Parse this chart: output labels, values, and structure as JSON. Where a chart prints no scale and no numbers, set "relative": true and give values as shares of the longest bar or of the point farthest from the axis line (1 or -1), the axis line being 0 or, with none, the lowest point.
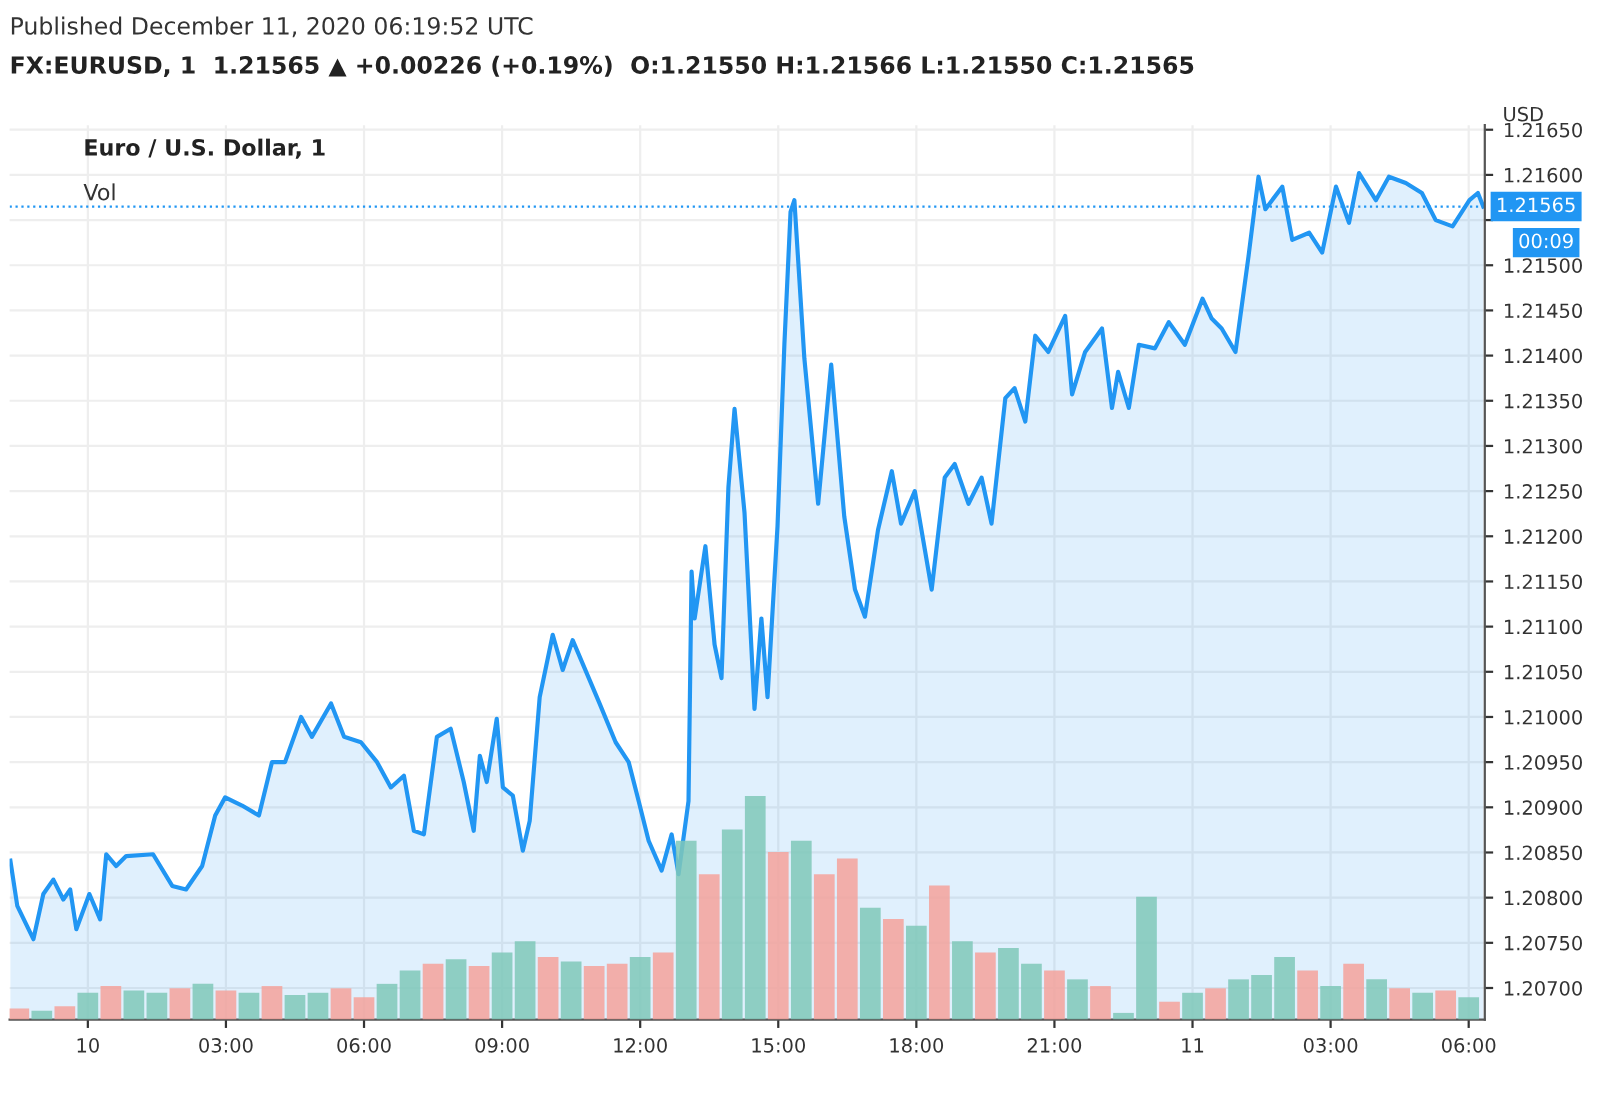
{
  "chart_data": [
    {
      "type": "area",
      "title": "FX:EURUSD, 1  1.21565 ▲ +0.00226 (+0.19%)  O:1.21550 H:1.21566 L:1.21550 C:1.21565",
      "subtitle": "Euro / U.S. Dollar, 1",
      "ylabel": "USD",
      "annotations": [
        "Published December 11, 2020 06:19:52 UTC",
        "00:09"
      ],
      "x": [
        "2020-12-09T22:19",
        "2020-12-09T22:28",
        "2020-12-09T22:49",
        "2020-12-09T23:02",
        "2020-12-09T23:15",
        "2020-12-09T23:28",
        "2020-12-09T23:37",
        "2020-12-09T23:45",
        "2020-12-10T00:02",
        "2020-12-10T00:16",
        "2020-12-10T00:24",
        "2020-12-10T00:37",
        "2020-12-10T00:50",
        "2020-12-10T01:25",
        "2020-12-10T01:50",
        "2020-12-10T02:08",
        "2020-12-10T02:29",
        "2020-12-10T02:46",
        "2020-12-10T02:59",
        "2020-12-10T03:21",
        "2020-12-10T03:43",
        "2020-12-10T04:00",
        "2020-12-10T04:17",
        "2020-12-10T04:38",
        "2020-12-10T04:52",
        "2020-12-10T05:17",
        "2020-12-10T05:34",
        "2020-12-10T05:56",
        "2020-12-10T06:17",
        "2020-12-10T06:35",
        "2020-12-10T06:52",
        "2020-12-10T07:05",
        "2020-12-10T07:18",
        "2020-12-10T07:35",
        "2020-12-10T07:53",
        "2020-12-10T08:10",
        "2020-12-10T08:23",
        "2020-12-10T08:31",
        "2020-12-10T08:40",
        "2020-12-10T08:53",
        "2020-12-10T09:01",
        "2020-12-10T09:14",
        "2020-12-10T09:27",
        "2020-12-10T09:36",
        "2020-12-10T09:49",
        "2020-12-10T10:06",
        "2020-12-10T10:19",
        "2020-12-10T10:32",
        "2020-12-10T10:45",
        "2020-12-10T11:07",
        "2020-12-10T11:28",
        "2020-12-10T11:45",
        "2020-12-10T11:58",
        "2020-12-10T12:11",
        "2020-12-10T12:28",
        "2020-12-10T12:41",
        "2020-12-10T12:50",
        "2020-12-10T13:03",
        "2020-12-10T13:07",
        "2020-12-10T13:11",
        "2020-12-10T13:25",
        "2020-12-10T13:37",
        "2020-12-10T13:46",
        "2020-12-10T13:55",
        "2020-12-10T14:03",
        "2020-12-10T14:16",
        "2020-12-10T14:29",
        "2020-12-10T14:38",
        "2020-12-10T14:46",
        "2020-12-10T14:59",
        "2020-12-10T15:08",
        "2020-12-10T15:16",
        "2020-12-10T15:21",
        "2020-12-10T15:34",
        "2020-12-10T15:52",
        "2020-12-10T16:09",
        "2020-12-10T16:26",
        "2020-12-10T16:40",
        "2020-12-10T16:53",
        "2020-12-10T17:10",
        "2020-12-10T17:28",
        "2020-12-10T17:40",
        "2020-12-10T17:58",
        "2020-12-10T18:20",
        "2020-12-10T18:37",
        "2020-12-10T18:50",
        "2020-12-10T19:08",
        "2020-12-10T19:25",
        "2020-12-10T19:38",
        "2020-12-10T19:56",
        "2020-12-10T20:08",
        "2020-12-10T20:22",
        "2020-12-10T20:35",
        "2020-12-10T20:52",
        "2020-12-10T21:14",
        "2020-12-10T21:23",
        "2020-12-10T21:40",
        "2020-12-10T22:02",
        "2020-12-10T22:15",
        "2020-12-10T22:23",
        "2020-12-10T22:37",
        "2020-12-10T22:50",
        "2020-12-10T23:11",
        "2020-12-10T23:29",
        "2020-12-10T23:50",
        "2020-12-11T00:13",
        "2020-12-11T00:25",
        "2020-12-11T00:38",
        "2020-12-11T00:56",
        "2020-12-11T01:13",
        "2020-12-11T01:26",
        "2020-12-11T01:35",
        "2020-12-11T01:57",
        "2020-12-11T02:10",
        "2020-12-11T02:32",
        "2020-12-11T02:49",
        "2020-12-11T03:07",
        "2020-12-11T03:24",
        "2020-12-11T03:37",
        "2020-12-11T03:59",
        "2020-12-11T04:16",
        "2020-12-11T04:38",
        "2020-12-11T04:59",
        "2020-12-11T05:17",
        "2020-12-11T05:39",
        "2020-12-11T06:01",
        "2020-12-11T06:12",
        "2020-12-11T06:19"
      ],
      "series": [
        {
          "color": "#2196f3",
          "values": [
            1.20841,
            1.20791,
            1.20754,
            1.20804,
            1.2082,
            1.20798,
            1.20809,
            1.20765,
            1.20804,
            1.20776,
            1.20848,
            1.20835,
            1.20846,
            1.20848,
            1.20813,
            1.20809,
            1.20835,
            1.20891,
            1.20911,
            1.20902,
            1.20891,
            1.2095,
            1.2095,
            1.21,
            1.20978,
            1.21015,
            1.20978,
            1.20972,
            1.2095,
            1.20922,
            1.20935,
            1.20874,
            1.2087,
            1.20978,
            1.20987,
            1.20928,
            1.20874,
            1.20957,
            1.20928,
            1.20998,
            1.20922,
            1.20913,
            1.20852,
            1.20885,
            1.21022,
            1.21091,
            1.21052,
            1.21085,
            1.21059,
            1.21015,
            1.20972,
            1.2095,
            1.20907,
            1.20863,
            1.2083,
            1.2087,
            1.20826,
            1.20907,
            1.21161,
            1.21109,
            1.21189,
            1.2108,
            1.21043,
            1.21254,
            1.21341,
            1.21226,
            1.21009,
            1.21109,
            1.21022,
            1.21211,
            1.21413,
            1.21559,
            1.21572,
            1.21397,
            1.21236,
            1.2139,
            1.21222,
            1.21141,
            1.21111,
            1.21207,
            1.21272,
            1.21214,
            1.2125,
            1.21141,
            1.21265,
            1.2128,
            1.21236,
            1.21265,
            1.21214,
            1.21353,
            1.21364,
            1.21327,
            1.21422,
            1.21404,
            1.21444,
            1.21357,
            1.21404,
            1.2143,
            1.21342,
            1.21382,
            1.21342,
            1.21412,
            1.21408,
            1.21437,
            1.21412,
            1.21463,
            1.21441,
            1.2143,
            1.21404,
            1.2151,
            1.21598,
            1.21562,
            1.21587,
            1.21528,
            1.21536,
            1.21514,
            1.21587,
            1.21547,
            1.21602,
            1.21572,
            1.21598,
            1.21591,
            1.2158,
            1.2155,
            1.21543,
            1.21572,
            1.2158,
            1.21565
          ]
        }
      ],
      "xlim": [
        "2020-12-09T22:18",
        "2020-12-11T06:21"
      ],
      "ylim": [
        1.20665,
        1.21655
      ],
      "xticks": [
        {
          "value": "2020-12-10T00:00",
          "label": "10"
        },
        {
          "value": "2020-12-10T03:00",
          "label": "03:00"
        },
        {
          "value": "2020-12-10T06:00",
          "label": "06:00"
        },
        {
          "value": "2020-12-10T09:00",
          "label": "09:00"
        },
        {
          "value": "2020-12-10T12:00",
          "label": "12:00"
        },
        {
          "value": "2020-12-10T15:00",
          "label": "15:00"
        },
        {
          "value": "2020-12-10T18:00",
          "label": "18:00"
        },
        {
          "value": "2020-12-10T21:00",
          "label": "21:00"
        },
        {
          "value": "2020-12-11T00:00",
          "label": "11"
        },
        {
          "value": "2020-12-11T03:00",
          "label": "03:00"
        },
        {
          "value": "2020-12-11T06:00",
          "label": "06:00"
        }
      ],
      "yticks": [
        {
          "value": 1.207,
          "label": "1.20700"
        },
        {
          "value": 1.2075,
          "label": "1.20750"
        },
        {
          "value": 1.208,
          "label": "1.20800"
        },
        {
          "value": 1.2085,
          "label": "1.20850"
        },
        {
          "value": 1.209,
          "label": "1.20900"
        },
        {
          "value": 1.2095,
          "label": "1.20950"
        },
        {
          "value": 1.21,
          "label": "1.21000"
        },
        {
          "value": 1.2105,
          "label": "1.21050"
        },
        {
          "value": 1.211,
          "label": "1.21100"
        },
        {
          "value": 1.2115,
          "label": "1.21150"
        },
        {
          "value": 1.212,
          "label": "1.21200"
        },
        {
          "value": 1.2125,
          "label": "1.21250"
        },
        {
          "value": 1.213,
          "label": "1.21300"
        },
        {
          "value": 1.2135,
          "label": "1.21350"
        },
        {
          "value": 1.214,
          "label": "1.21400"
        },
        {
          "value": 1.2145,
          "label": "1.21450"
        },
        {
          "value": 1.215,
          "label": "1.21500"
        },
        {
          "value": 1.2155,
          "label": null
        },
        {
          "value": 1.216,
          "label": "1.21600"
        },
        {
          "value": 1.2165,
          "label": "1.21650"
        }
      ],
      "ref_lines": [
        {
          "axis": "y",
          "value": 1.21565,
          "label": "1.21565",
          "color": "#2196f3",
          "line_style": "dotted"
        }
      ],
      "grid": true,
      "legend": false
    },
    {
      "type": "bar",
      "title": "Vol",
      "relative": true,
      "tick_labels": false,
      "xlim": [
        "2020-12-09T22:18",
        "2020-12-11T06:21"
      ],
      "x": [
        "2020-12-09T22:30",
        "2020-12-09T23:00",
        "2020-12-09T23:30",
        "2020-12-10T00:00",
        "2020-12-10T00:30",
        "2020-12-10T01:00",
        "2020-12-10T01:30",
        "2020-12-10T02:00",
        "2020-12-10T02:30",
        "2020-12-10T03:00",
        "2020-12-10T03:30",
        "2020-12-10T04:00",
        "2020-12-10T04:30",
        "2020-12-10T05:00",
        "2020-12-10T05:30",
        "2020-12-10T06:00",
        "2020-12-10T06:30",
        "2020-12-10T07:00",
        "2020-12-10T07:30",
        "2020-12-10T08:00",
        "2020-12-10T08:30",
        "2020-12-10T09:00",
        "2020-12-10T09:30",
        "2020-12-10T10:00",
        "2020-12-10T10:30",
        "2020-12-10T11:00",
        "2020-12-10T11:30",
        "2020-12-10T12:00",
        "2020-12-10T12:30",
        "2020-12-10T13:00",
        "2020-12-10T13:30",
        "2020-12-10T14:00",
        "2020-12-10T14:30",
        "2020-12-10T15:00",
        "2020-12-10T15:30",
        "2020-12-10T16:00",
        "2020-12-10T16:30",
        "2020-12-10T17:00",
        "2020-12-10T17:30",
        "2020-12-10T18:00",
        "2020-12-10T18:30",
        "2020-12-10T19:00",
        "2020-12-10T19:30",
        "2020-12-10T20:00",
        "2020-12-10T20:30",
        "2020-12-10T21:00",
        "2020-12-10T21:30",
        "2020-12-10T22:00",
        "2020-12-10T22:30",
        "2020-12-10T23:00",
        "2020-12-10T23:30",
        "2020-12-11T00:00",
        "2020-12-11T00:30",
        "2020-12-11T01:00",
        "2020-12-11T01:30",
        "2020-12-11T02:00",
        "2020-12-11T02:30",
        "2020-12-11T03:00",
        "2020-12-11T03:30",
        "2020-12-11T04:00",
        "2020-12-11T04:30",
        "2020-12-11T05:00",
        "2020-12-11T05:30",
        "2020-12-11T06:00"
      ],
      "values": [
        0.05,
        0.04,
        0.06,
        0.12,
        0.15,
        0.13,
        0.12,
        0.14,
        0.16,
        0.13,
        0.12,
        0.15,
        0.11,
        0.12,
        0.14,
        0.1,
        0.16,
        0.22,
        0.25,
        0.27,
        0.24,
        0.3,
        0.35,
        0.28,
        0.26,
        0.24,
        0.25,
        0.28,
        0.3,
        0.8,
        0.65,
        0.85,
        1.0,
        0.75,
        0.8,
        0.65,
        0.72,
        0.5,
        0.45,
        0.42,
        0.6,
        0.35,
        0.3,
        0.32,
        0.25,
        0.22,
        0.18,
        0.15,
        0.03,
        0.55,
        0.08,
        0.12,
        0.14,
        0.18,
        0.2,
        0.28,
        0.22,
        0.15,
        0.25,
        0.18,
        0.14,
        0.12,
        0.13,
        0.1
      ],
      "colors": [
        "#f4a29b",
        "#7fc8b8",
        "#f4a29b",
        "#7fc8b8",
        "#f4a29b",
        "#7fc8b8",
        "#7fc8b8",
        "#f4a29b",
        "#7fc8b8",
        "#f4a29b",
        "#7fc8b8",
        "#f4a29b",
        "#7fc8b8",
        "#7fc8b8",
        "#f4a29b",
        "#f4a29b",
        "#7fc8b8",
        "#7fc8b8",
        "#f4a29b",
        "#7fc8b8",
        "#f4a29b",
        "#7fc8b8",
        "#7fc8b8",
        "#f4a29b",
        "#7fc8b8",
        "#f4a29b",
        "#f4a29b",
        "#7fc8b8",
        "#f4a29b",
        "#7fc8b8",
        "#f4a29b",
        "#7fc8b8",
        "#7fc8b8",
        "#f4a29b",
        "#7fc8b8",
        "#f4a29b",
        "#f4a29b",
        "#7fc8b8",
        "#f4a29b",
        "#7fc8b8",
        "#f4a29b",
        "#7fc8b8",
        "#f4a29b",
        "#7fc8b8",
        "#7fc8b8",
        "#f4a29b",
        "#7fc8b8",
        "#f4a29b",
        "#7fc8b8",
        "#7fc8b8",
        "#f4a29b",
        "#7fc8b8",
        "#f4a29b",
        "#7fc8b8",
        "#7fc8b8",
        "#7fc8b8",
        "#f4a29b",
        "#7fc8b8",
        "#f4a29b",
        "#7fc8b8",
        "#f4a29b",
        "#7fc8b8",
        "#f4a29b",
        "#7fc8b8"
      ]
    }
  ]
}
